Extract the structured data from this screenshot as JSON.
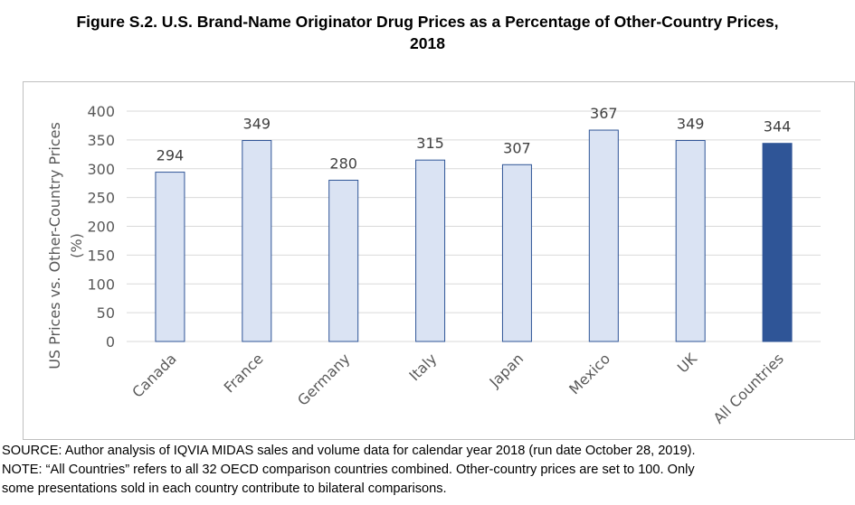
{
  "figure": {
    "title_line1": "Figure S.2. U.S. Brand-Name Originator Drug Prices as a Percentage of Other-Country Prices,",
    "title_line2": "2018"
  },
  "notes": {
    "source": "SOURCE: Author analysis of IQVIA MIDAS sales and volume data for calendar year 2018 (run date October 28, 2019).",
    "note_line1": "NOTE: “All Countries” refers to all 32 OECD comparison countries combined. Other-country prices are set to 100. Only",
    "note_line2": "some presentations sold in each country contribute to bilateral comparisons."
  },
  "chart_data": {
    "type": "bar",
    "categories": [
      "Canada",
      "France",
      "Germany",
      "Italy",
      "Japan",
      "Mexico",
      "UK",
      "All Countries"
    ],
    "values": [
      294,
      349,
      280,
      315,
      307,
      367,
      349,
      344
    ],
    "ylabel_line1": "US Prices vs. Other-Country Prices",
    "ylabel_line2": "(%)",
    "ylim": [
      0,
      400
    ],
    "yticks": [
      0,
      50,
      100,
      150,
      200,
      250,
      300,
      350,
      400
    ],
    "grid": true,
    "colors": {
      "bar_fill": "#dae3f3",
      "bar_stroke": "#2f5597",
      "highlight_fill": "#2f5597",
      "grid": "#d9d9d9",
      "frame": "#bfbfbf"
    },
    "highlight_category": "All Countries"
  }
}
